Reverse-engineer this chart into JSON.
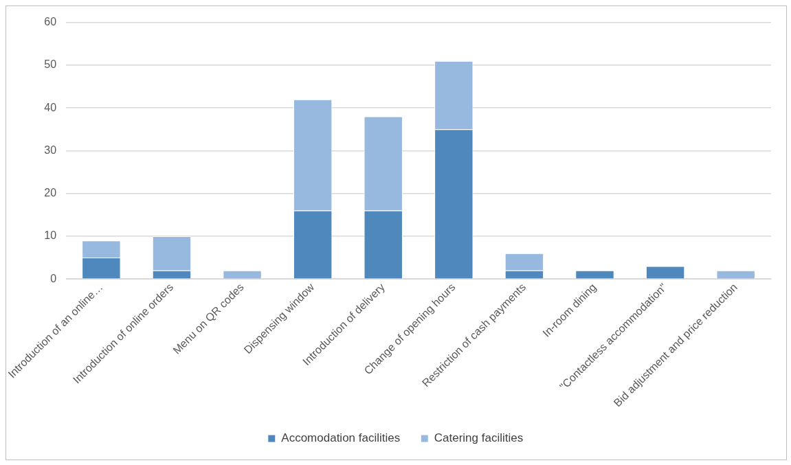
{
  "chart_data": {
    "type": "bar",
    "stacked": true,
    "categories": [
      "Introduction of an online…",
      "Introduction of online orders",
      "Menu on QR codes",
      "Dispensing window",
      "Introduction of delivery",
      "Change of opening hours",
      "Restriction of cash payments",
      "In-room dining",
      "\"Contactless accommodation\"",
      "Bid adjustment and price reduction"
    ],
    "series": [
      {
        "name": "Accomodation facilities",
        "color": "#4f88bc",
        "values": [
          5,
          2,
          0,
          16,
          16,
          35,
          2,
          2,
          3,
          0
        ]
      },
      {
        "name": "Catering facilities",
        "color": "#98b9df",
        "values": [
          4,
          8,
          2,
          26,
          22,
          16,
          4,
          0,
          0,
          2
        ]
      }
    ],
    "ylim": [
      0,
      60
    ],
    "yticks": [
      0,
      10,
      20,
      30,
      40,
      50,
      60
    ],
    "grid": "y",
    "legend": "bottom"
  }
}
